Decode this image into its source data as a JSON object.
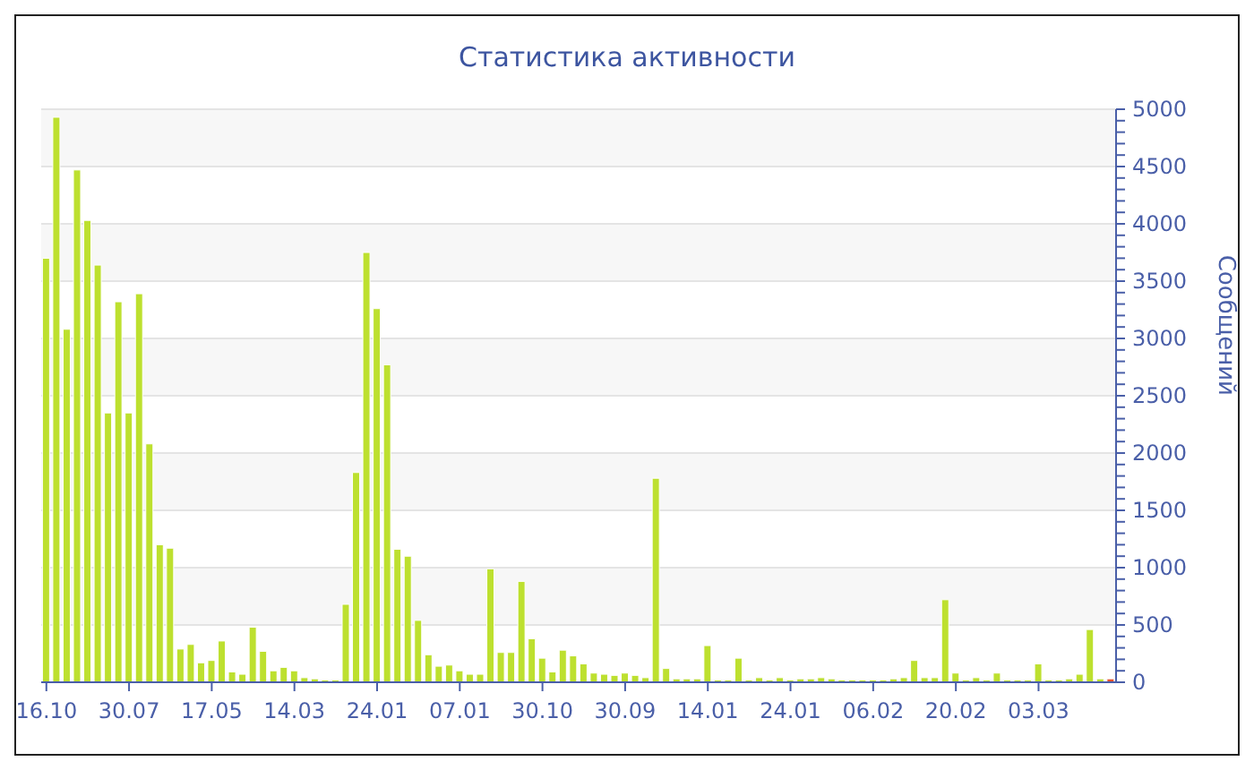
{
  "chart_data": {
    "type": "bar",
    "title": "Статистика активности",
    "ylabel": "Сообщений",
    "categories": [
      "16.10",
      null,
      null,
      null,
      null,
      null,
      null,
      null,
      "30.07",
      null,
      null,
      null,
      null,
      null,
      null,
      null,
      "17.05",
      null,
      null,
      null,
      null,
      null,
      null,
      null,
      "14.03",
      null,
      null,
      null,
      null,
      null,
      null,
      null,
      "24.01",
      null,
      null,
      null,
      null,
      null,
      null,
      null,
      "07.01",
      null,
      null,
      null,
      null,
      null,
      null,
      null,
      "30.10",
      null,
      null,
      null,
      null,
      null,
      null,
      null,
      "30.09",
      null,
      null,
      null,
      null,
      null,
      null,
      null,
      "14.01",
      null,
      null,
      null,
      null,
      null,
      null,
      null,
      "24.01",
      null,
      null,
      null,
      null,
      null,
      null,
      null,
      "06.02",
      null,
      null,
      null,
      null,
      null,
      null,
      null,
      "20.02",
      null,
      null,
      null,
      null,
      null,
      null,
      null,
      "03.03",
      null,
      null,
      null,
      null,
      null,
      null,
      null
    ],
    "values": [
      3700,
      4930,
      3080,
      4470,
      4030,
      3640,
      2350,
      3320,
      2350,
      3390,
      2080,
      1200,
      1170,
      290,
      330,
      170,
      190,
      360,
      90,
      70,
      480,
      270,
      100,
      130,
      100,
      40,
      30,
      20,
      20,
      680,
      1830,
      3750,
      3260,
      2770,
      1160,
      1100,
      540,
      240,
      140,
      150,
      100,
      70,
      70,
      990,
      260,
      260,
      880,
      380,
      210,
      90,
      280,
      230,
      160,
      80,
      70,
      60,
      80,
      60,
      40,
      1780,
      120,
      30,
      30,
      30,
      320,
      20,
      20,
      210,
      20,
      40,
      20,
      40,
      20,
      30,
      30,
      40,
      30,
      20,
      20,
      20,
      20,
      20,
      30,
      40,
      190,
      40,
      40,
      720,
      80,
      20,
      40,
      20,
      80,
      20,
      20,
      20,
      160,
      20,
      20,
      30,
      70,
      460,
      30,
      30
    ],
    "colors": [
      "#bde02f",
      "#bde02f",
      "#bde02f",
      "#bde02f",
      "#bde02f",
      "#bde02f",
      "#bde02f",
      "#bde02f",
      "#bde02f",
      "#bde02f",
      "#bde02f",
      "#bde02f",
      "#bde02f",
      "#bde02f",
      "#bde02f",
      "#bde02f",
      "#bde02f",
      "#bde02f",
      "#bde02f",
      "#bde02f",
      "#bde02f",
      "#bde02f",
      "#bde02f",
      "#bde02f",
      "#bde02f",
      "#bde02f",
      "#bde02f",
      "#bde02f",
      "#bde02f",
      "#bde02f",
      "#bde02f",
      "#bde02f",
      "#bde02f",
      "#bde02f",
      "#bde02f",
      "#bde02f",
      "#bde02f",
      "#bde02f",
      "#bde02f",
      "#bde02f",
      "#bde02f",
      "#bde02f",
      "#bde02f",
      "#bde02f",
      "#bde02f",
      "#bde02f",
      "#bde02f",
      "#bde02f",
      "#bde02f",
      "#bde02f",
      "#bde02f",
      "#bde02f",
      "#bde02f",
      "#bde02f",
      "#bde02f",
      "#bde02f",
      "#bde02f",
      "#bde02f",
      "#bde02f",
      "#bde02f",
      "#bde02f",
      "#bde02f",
      "#bde02f",
      "#bde02f",
      "#bde02f",
      "#bde02f",
      "#bde02f",
      "#bde02f",
      "#bde02f",
      "#bde02f",
      "#bde02f",
      "#bde02f",
      "#bde02f",
      "#bde02f",
      "#bde02f",
      "#bde02f",
      "#bde02f",
      "#bde02f",
      "#bde02f",
      "#bde02f",
      "#bde02f",
      "#bde02f",
      "#bde02f",
      "#bde02f",
      "#bde02f",
      "#bde02f",
      "#bde02f",
      "#bde02f",
      "#bde02f",
      "#bde02f",
      "#bde02f",
      "#bde02f",
      "#bde02f",
      "#bde02f",
      "#bde02f",
      "#bde02f",
      "#bde02f",
      "#bde02f",
      "#bde02f",
      "#bde02f",
      "#bde02f",
      "#bde02f",
      "#bde02f",
      "#e8502d"
    ],
    "ylim": [
      0,
      5000
    ],
    "yticks": [
      0,
      {
        "value": 100,
        "label": null
      },
      {
        "value": 200,
        "label": null
      },
      {
        "value": 300,
        "label": null
      },
      {
        "value": 400,
        "label": null
      },
      500,
      {
        "value": 600,
        "label": null
      },
      {
        "value": 700,
        "label": null
      },
      {
        "value": 800,
        "label": null
      },
      {
        "value": 900,
        "label": null
      },
      1000,
      {
        "value": 1100,
        "label": null
      },
      {
        "value": 1200,
        "label": null
      },
      {
        "value": 1300,
        "label": null
      },
      {
        "value": 1400,
        "label": null
      },
      1500,
      {
        "value": 1600,
        "label": null
      },
      {
        "value": 1700,
        "label": null
      },
      {
        "value": 1800,
        "label": null
      },
      {
        "value": 1900,
        "label": null
      },
      2000,
      {
        "value": 2100,
        "label": null
      },
      {
        "value": 2200,
        "label": null
      },
      {
        "value": 2300,
        "label": null
      },
      {
        "value": 2400,
        "label": null
      },
      2500,
      {
        "value": 2600,
        "label": null
      },
      {
        "value": 2700,
        "label": null
      },
      {
        "value": 2800,
        "label": null
      },
      {
        "value": 2900,
        "label": null
      },
      3000,
      {
        "value": 3100,
        "label": null
      },
      {
        "value": 3200,
        "label": null
      },
      {
        "value": 3300,
        "label": null
      },
      {
        "value": 3400,
        "label": null
      },
      3500,
      {
        "value": 3600,
        "label": null
      },
      {
        "value": 3700,
        "label": null
      },
      {
        "value": 3800,
        "label": null
      },
      {
        "value": 3900,
        "label": null
      },
      4000,
      {
        "value": 4100,
        "label": null
      },
      {
        "value": 4200,
        "label": null
      },
      {
        "value": 4300,
        "label": null
      },
      {
        "value": 4400,
        "label": null
      },
      4500,
      {
        "value": 4600,
        "label": null
      },
      {
        "value": 4700,
        "label": null
      },
      {
        "value": 4800,
        "label": null
      },
      {
        "value": 4900,
        "label": null
      },
      5000
    ],
    "grid": "y"
  }
}
